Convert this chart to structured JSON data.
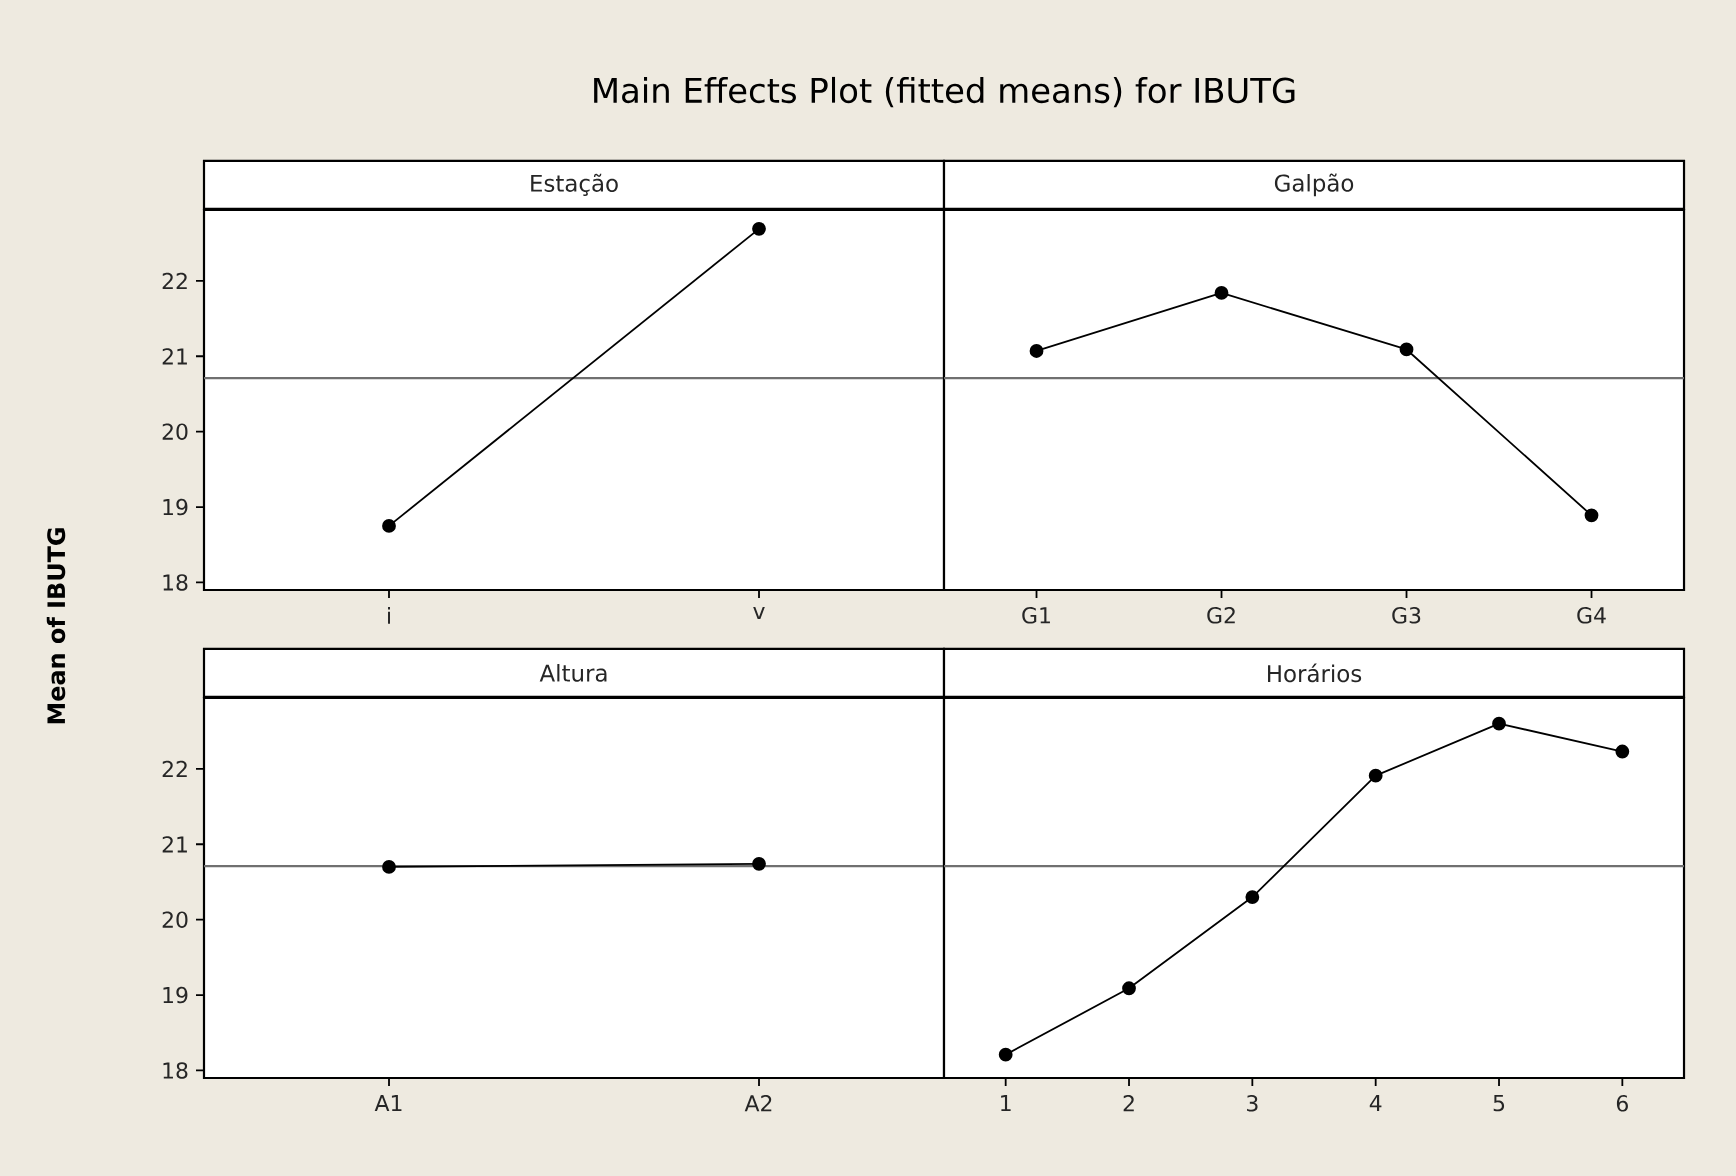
{
  "chart_data": [
    {
      "type": "line",
      "title": "Main Effects Plot (fitted means) for IBUTG",
      "xlabel": "Estação",
      "ylabel": "Mean of IBUTG",
      "categories": [
        "i",
        "v"
      ],
      "values": [
        18.75,
        22.69
      ],
      "color": "#000000",
      "marker": "circle",
      "line_style": "solid",
      "ylim": [
        17.9,
        22.94
      ],
      "yticks": [
        18,
        19,
        20,
        21,
        22
      ],
      "ref_lines": [
        {
          "axis": "y",
          "value": 20.71,
          "color": "#707070"
        }
      ]
    },
    {
      "type": "line",
      "xlabel": "Galpão",
      "categories": [
        "G1",
        "G2",
        "G3",
        "G4"
      ],
      "values": [
        21.07,
        21.84,
        21.09,
        18.89
      ],
      "color": "#000000",
      "marker": "circle",
      "line_style": "solid",
      "ylim": [
        17.9,
        22.94
      ],
      "tick_labels": "x",
      "ref_lines": [
        {
          "axis": "y",
          "value": 20.71,
          "color": "#707070"
        }
      ]
    },
    {
      "type": "line",
      "xlabel": "Altura",
      "categories": [
        "A1",
        "A2"
      ],
      "values": [
        20.7,
        20.74
      ],
      "color": "#000000",
      "marker": "circle",
      "line_style": "solid",
      "ylim": [
        17.9,
        22.94
      ],
      "yticks": [
        18,
        19,
        20,
        21,
        22
      ],
      "ref_lines": [
        {
          "axis": "y",
          "value": 20.71,
          "color": "#707070"
        }
      ]
    },
    {
      "type": "line",
      "xlabel": "Horários",
      "categories": [
        "1",
        "2",
        "3",
        "4",
        "5",
        "6"
      ],
      "values": [
        18.21,
        19.09,
        20.3,
        21.91,
        22.6,
        22.23
      ],
      "color": "#000000",
      "marker": "circle",
      "line_style": "solid",
      "ylim": [
        17.9,
        22.94
      ],
      "tick_labels": "x",
      "ref_lines": [
        {
          "axis": "y",
          "value": 20.71,
          "color": "#707070"
        }
      ]
    }
  ]
}
